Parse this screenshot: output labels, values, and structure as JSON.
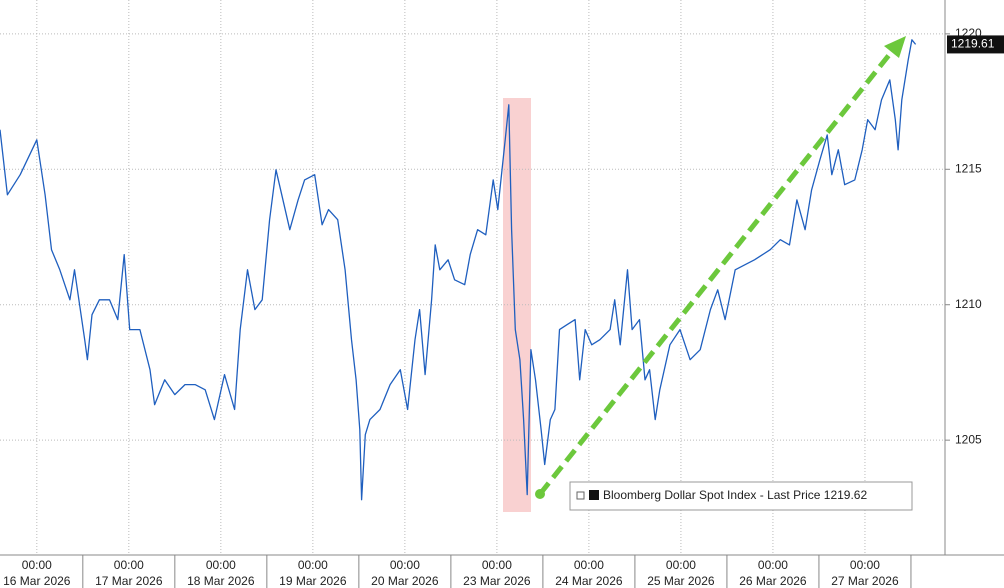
{
  "chart_data": {
    "type": "line",
    "x": [
      -0.4,
      -0.32,
      -0.18,
      0,
      0.09,
      0.16,
      0.25,
      0.36,
      0.41,
      0.52,
      0.55,
      0.6,
      0.68,
      0.79,
      0.88,
      0.95,
      1.01,
      1.12,
      1.23,
      1.28,
      1.39,
      1.5,
      1.61,
      1.72,
      1.83,
      1.93,
      2.04,
      2.15,
      2.21,
      2.29,
      2.37,
      2.45,
      2.53,
      2.6,
      2.75,
      2.84,
      2.91,
      3.02,
      3.1,
      3.17,
      3.27,
      3.35,
      3.42,
      3.47,
      3.51,
      3.53,
      3.57,
      3.62,
      3.73,
      3.84,
      3.95,
      4.03,
      4.11,
      4.16,
      4.22,
      4.29,
      4.33,
      4.38,
      4.47,
      4.54,
      4.65,
      4.71,
      4.79,
      4.88,
      4.96,
      5.01,
      5.09,
      5.13,
      5.16,
      5.2,
      5.25,
      5.29,
      5.33,
      5.37,
      5.42,
      5.48,
      5.52,
      5.58,
      5.63,
      5.68,
      5.76,
      5.85,
      5.9,
      5.96,
      6.03,
      6.12,
      6.23,
      6.28,
      6.34,
      6.42,
      6.47,
      6.55,
      6.61,
      6.66,
      6.72,
      6.77,
      6.88,
      6.99,
      7.1,
      7.21,
      7.32,
      7.4,
      7.48,
      7.59,
      7.7,
      7.8,
      7.97,
      8.08,
      8.18,
      8.26,
      8.35,
      8.42,
      8.51,
      8.59,
      8.64,
      8.71,
      8.78,
      8.89,
      8.97,
      9.03,
      9.11,
      9.18,
      9.27,
      9.33,
      9.36,
      9.4,
      9.47,
      9.51,
      9.55
    ],
    "series": [
      {
        "name": "Bloomberg Dollar Spot Index - Last Price 1219.62",
        "color": "#1f5fbf",
        "values": [
          1216.46,
          1214.06,
          1214.8,
          1216.09,
          1214.06,
          1212.03,
          1211.29,
          1210.18,
          1211.29,
          1208.71,
          1207.97,
          1209.63,
          1210.18,
          1210.18,
          1209.45,
          1211.85,
          1209.08,
          1209.08,
          1207.6,
          1206.31,
          1207.23,
          1206.68,
          1207.05,
          1207.05,
          1206.86,
          1205.76,
          1207.42,
          1206.13,
          1209.08,
          1211.29,
          1209.82,
          1210.18,
          1213.14,
          1214.98,
          1212.77,
          1213.87,
          1214.61,
          1214.8,
          1212.95,
          1213.51,
          1213.14,
          1211.29,
          1208.71,
          1207.23,
          1205.39,
          1202.8,
          1205.2,
          1205.76,
          1206.13,
          1207.05,
          1207.6,
          1206.13,
          1208.71,
          1209.82,
          1207.42,
          1210.18,
          1212.21,
          1211.29,
          1211.66,
          1210.92,
          1210.74,
          1211.85,
          1212.77,
          1212.58,
          1214.61,
          1213.51,
          1216.09,
          1217.38,
          1212.77,
          1209.08,
          1207.97,
          1205.76,
          1202.99,
          1208.34,
          1207.23,
          1205.39,
          1204.1,
          1205.76,
          1206.13,
          1209.08,
          1209.26,
          1209.45,
          1207.23,
          1209.08,
          1208.52,
          1208.71,
          1209.08,
          1210.18,
          1208.52,
          1211.29,
          1209.08,
          1209.45,
          1207.23,
          1207.6,
          1205.76,
          1206.86,
          1208.52,
          1209.08,
          1207.97,
          1208.34,
          1209.82,
          1210.55,
          1209.45,
          1211.29,
          1211.48,
          1211.66,
          1212.03,
          1212.4,
          1212.21,
          1213.87,
          1212.77,
          1214.24,
          1215.35,
          1216.27,
          1214.8,
          1215.72,
          1214.43,
          1214.61,
          1215.72,
          1216.83,
          1216.46,
          1217.56,
          1218.3,
          1216.83,
          1215.72,
          1217.56,
          1219.04,
          1219.78,
          1219.61
        ]
      }
    ],
    "xlim": [
      -0.4,
      9.87
    ],
    "xticks": [
      {
        "value": 0,
        "label": "00:00\n16 Mar 2026"
      },
      {
        "value": 1,
        "label": "00:00\n17 Mar 2026"
      },
      {
        "value": 2,
        "label": "00:00\n18 Mar 2026"
      },
      {
        "value": 3,
        "label": "00:00\n19 Mar 2026"
      },
      {
        "value": 4,
        "label": "00:00\n20 Mar 2026"
      },
      {
        "value": 5,
        "label": "00:00\n23 Mar 2026"
      },
      {
        "value": 6,
        "label": "00:00\n24 Mar 2026"
      },
      {
        "value": 7,
        "label": "00:00\n25 Mar 2026"
      },
      {
        "value": 8,
        "label": "00:00\n26 Mar 2026"
      },
      {
        "value": 9,
        "label": "00:00\n27 Mar 2026"
      }
    ],
    "ylim": [
      1200.76,
      1221.25
    ],
    "yticks": [
      1205,
      1210,
      1215,
      1220
    ],
    "grid": true
  }
}
